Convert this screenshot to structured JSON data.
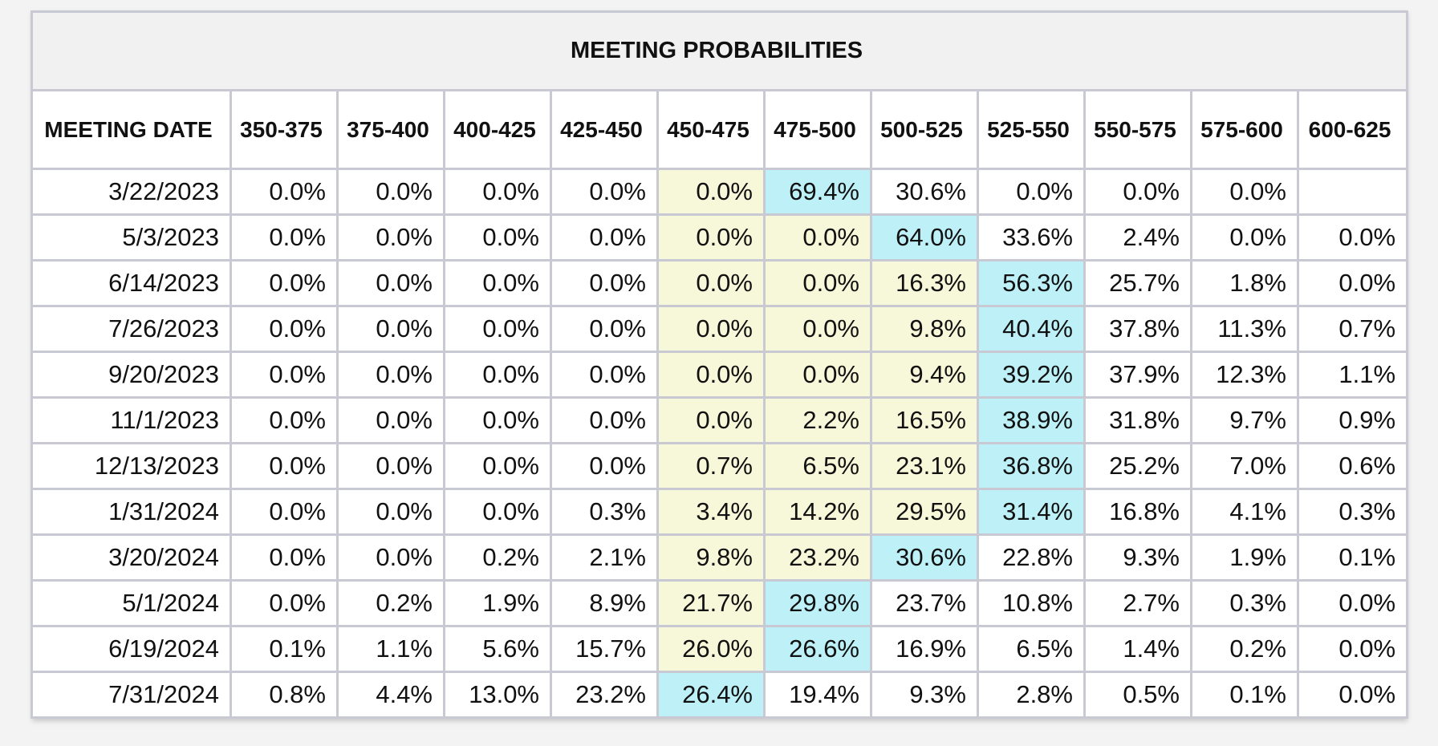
{
  "chart_data": {
    "type": "table",
    "title": "MEETING PROBABILITIES",
    "row_header": "MEETING DATE",
    "columns": [
      "350-375",
      "375-400",
      "400-425",
      "425-450",
      "450-475",
      "475-500",
      "500-525",
      "525-550",
      "550-575",
      "575-600",
      "600-625"
    ],
    "rows": [
      {
        "date": "3/22/2023",
        "values": [
          "0.0%",
          "0.0%",
          "0.0%",
          "0.0%",
          "0.0%",
          "69.4%",
          "30.6%",
          "0.0%",
          "0.0%",
          "0.0%",
          ""
        ],
        "highlight": [
          null,
          null,
          null,
          null,
          "yellow",
          "cyan",
          null,
          null,
          null,
          null,
          null
        ]
      },
      {
        "date": "5/3/2023",
        "values": [
          "0.0%",
          "0.0%",
          "0.0%",
          "0.0%",
          "0.0%",
          "0.0%",
          "64.0%",
          "33.6%",
          "2.4%",
          "0.0%",
          "0.0%"
        ],
        "highlight": [
          null,
          null,
          null,
          null,
          "yellow",
          "yellow",
          "cyan",
          null,
          null,
          null,
          null
        ]
      },
      {
        "date": "6/14/2023",
        "values": [
          "0.0%",
          "0.0%",
          "0.0%",
          "0.0%",
          "0.0%",
          "0.0%",
          "16.3%",
          "56.3%",
          "25.7%",
          "1.8%",
          "0.0%"
        ],
        "highlight": [
          null,
          null,
          null,
          null,
          "yellow",
          "yellow",
          "yellow",
          "cyan",
          null,
          null,
          null
        ]
      },
      {
        "date": "7/26/2023",
        "values": [
          "0.0%",
          "0.0%",
          "0.0%",
          "0.0%",
          "0.0%",
          "0.0%",
          "9.8%",
          "40.4%",
          "37.8%",
          "11.3%",
          "0.7%"
        ],
        "highlight": [
          null,
          null,
          null,
          null,
          "yellow",
          "yellow",
          "yellow",
          "cyan",
          null,
          null,
          null
        ]
      },
      {
        "date": "9/20/2023",
        "values": [
          "0.0%",
          "0.0%",
          "0.0%",
          "0.0%",
          "0.0%",
          "0.0%",
          "9.4%",
          "39.2%",
          "37.9%",
          "12.3%",
          "1.1%"
        ],
        "highlight": [
          null,
          null,
          null,
          null,
          "yellow",
          "yellow",
          "yellow",
          "cyan",
          null,
          null,
          null
        ]
      },
      {
        "date": "11/1/2023",
        "values": [
          "0.0%",
          "0.0%",
          "0.0%",
          "0.0%",
          "0.0%",
          "2.2%",
          "16.5%",
          "38.9%",
          "31.8%",
          "9.7%",
          "0.9%"
        ],
        "highlight": [
          null,
          null,
          null,
          null,
          "yellow",
          "yellow",
          "yellow",
          "cyan",
          null,
          null,
          null
        ]
      },
      {
        "date": "12/13/2023",
        "values": [
          "0.0%",
          "0.0%",
          "0.0%",
          "0.0%",
          "0.7%",
          "6.5%",
          "23.1%",
          "36.8%",
          "25.2%",
          "7.0%",
          "0.6%"
        ],
        "highlight": [
          null,
          null,
          null,
          null,
          "yellow",
          "yellow",
          "yellow",
          "cyan",
          null,
          null,
          null
        ]
      },
      {
        "date": "1/31/2024",
        "values": [
          "0.0%",
          "0.0%",
          "0.0%",
          "0.3%",
          "3.4%",
          "14.2%",
          "29.5%",
          "31.4%",
          "16.8%",
          "4.1%",
          "0.3%"
        ],
        "highlight": [
          null,
          null,
          null,
          null,
          "yellow",
          "yellow",
          "yellow",
          "cyan",
          null,
          null,
          null
        ]
      },
      {
        "date": "3/20/2024",
        "values": [
          "0.0%",
          "0.0%",
          "0.2%",
          "2.1%",
          "9.8%",
          "23.2%",
          "30.6%",
          "22.8%",
          "9.3%",
          "1.9%",
          "0.1%"
        ],
        "highlight": [
          null,
          null,
          null,
          null,
          "yellow",
          "yellow",
          "cyan",
          null,
          null,
          null,
          null
        ]
      },
      {
        "date": "5/1/2024",
        "values": [
          "0.0%",
          "0.2%",
          "1.9%",
          "8.9%",
          "21.7%",
          "29.8%",
          "23.7%",
          "10.8%",
          "2.7%",
          "0.3%",
          "0.0%"
        ],
        "highlight": [
          null,
          null,
          null,
          null,
          "yellow",
          "cyan",
          null,
          null,
          null,
          null,
          null
        ]
      },
      {
        "date": "6/19/2024",
        "values": [
          "0.1%",
          "1.1%",
          "5.6%",
          "15.7%",
          "26.0%",
          "26.6%",
          "16.9%",
          "6.5%",
          "1.4%",
          "0.2%",
          "0.0%"
        ],
        "highlight": [
          null,
          null,
          null,
          null,
          "yellow",
          "cyan",
          null,
          null,
          null,
          null,
          null
        ]
      },
      {
        "date": "7/31/2024",
        "values": [
          "0.8%",
          "4.4%",
          "13.0%",
          "23.2%",
          "26.4%",
          "19.4%",
          "9.3%",
          "2.8%",
          "0.5%",
          "0.1%",
          "0.0%"
        ],
        "highlight": [
          null,
          null,
          null,
          null,
          "cyan",
          null,
          null,
          null,
          null,
          null,
          null
        ]
      }
    ],
    "colors": {
      "yellow": "#f7f7d9",
      "cyan": "#bef0f7",
      "border": "#c9c9d3",
      "title_bg": "#f1f1f1"
    }
  }
}
